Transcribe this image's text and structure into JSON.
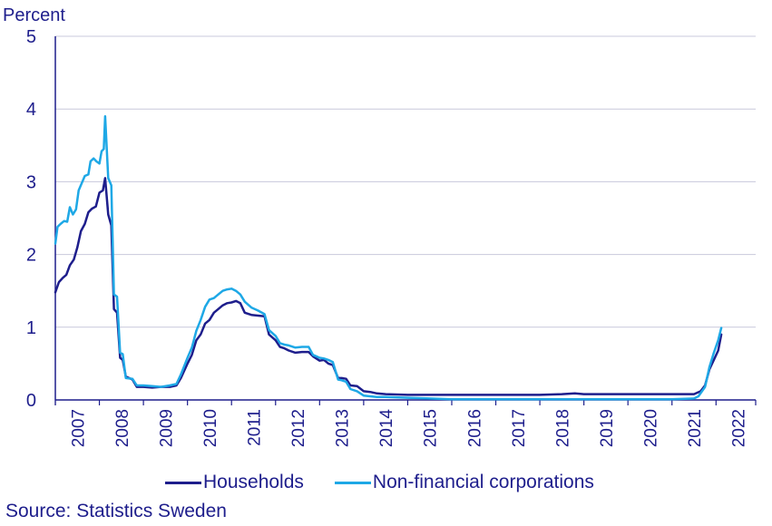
{
  "chart_data": {
    "type": "line",
    "y_unit_label": "Percent",
    "ylim": [
      0,
      5
    ],
    "y_ticks": [
      "0",
      "1",
      "2",
      "3",
      "4",
      "5"
    ],
    "x_ticks": [
      "2007",
      "2008",
      "2009",
      "2010",
      "2011",
      "2012",
      "2013",
      "2014",
      "2015",
      "2016",
      "2017",
      "2018",
      "2019",
      "2020",
      "2021",
      "2022"
    ],
    "xlim": [
      2007.0,
      2022.9
    ],
    "grid": true,
    "legend_position": "bottom",
    "series": [
      {
        "name": "Households",
        "color": "#1e1e8c",
        "points": [
          [
            2007.0,
            1.48
          ],
          [
            2007.08,
            1.62
          ],
          [
            2007.17,
            1.68
          ],
          [
            2007.25,
            1.72
          ],
          [
            2007.33,
            1.85
          ],
          [
            2007.42,
            1.93
          ],
          [
            2007.5,
            2.1
          ],
          [
            2007.58,
            2.32
          ],
          [
            2007.67,
            2.42
          ],
          [
            2007.75,
            2.58
          ],
          [
            2007.83,
            2.63
          ],
          [
            2007.92,
            2.66
          ],
          [
            2008.0,
            2.85
          ],
          [
            2008.08,
            2.88
          ],
          [
            2008.13,
            3.05
          ],
          [
            2008.2,
            2.55
          ],
          [
            2008.27,
            2.4
          ],
          [
            2008.33,
            1.25
          ],
          [
            2008.4,
            1.2
          ],
          [
            2008.47,
            0.58
          ],
          [
            2008.53,
            0.55
          ],
          [
            2008.6,
            0.32
          ],
          [
            2008.75,
            0.28
          ],
          [
            2008.85,
            0.18
          ],
          [
            2009.0,
            0.18
          ],
          [
            2009.2,
            0.17
          ],
          [
            2009.4,
            0.18
          ],
          [
            2009.6,
            0.18
          ],
          [
            2009.75,
            0.2
          ],
          [
            2009.85,
            0.3
          ],
          [
            2010.0,
            0.5
          ],
          [
            2010.1,
            0.62
          ],
          [
            2010.2,
            0.82
          ],
          [
            2010.3,
            0.9
          ],
          [
            2010.4,
            1.05
          ],
          [
            2010.5,
            1.1
          ],
          [
            2010.6,
            1.2
          ],
          [
            2010.7,
            1.25
          ],
          [
            2010.8,
            1.3
          ],
          [
            2010.9,
            1.33
          ],
          [
            2011.0,
            1.34
          ],
          [
            2011.1,
            1.36
          ],
          [
            2011.2,
            1.33
          ],
          [
            2011.3,
            1.2
          ],
          [
            2011.45,
            1.17
          ],
          [
            2011.6,
            1.16
          ],
          [
            2011.75,
            1.15
          ],
          [
            2011.85,
            0.9
          ],
          [
            2012.0,
            0.82
          ],
          [
            2012.1,
            0.73
          ],
          [
            2012.2,
            0.71
          ],
          [
            2012.3,
            0.68
          ],
          [
            2012.45,
            0.65
          ],
          [
            2012.6,
            0.66
          ],
          [
            2012.75,
            0.66
          ],
          [
            2012.85,
            0.6
          ],
          [
            2013.0,
            0.54
          ],
          [
            2013.1,
            0.55
          ],
          [
            2013.2,
            0.5
          ],
          [
            2013.3,
            0.48
          ],
          [
            2013.42,
            0.3
          ],
          [
            2013.5,
            0.3
          ],
          [
            2013.6,
            0.29
          ],
          [
            2013.7,
            0.2
          ],
          [
            2013.85,
            0.19
          ],
          [
            2014.0,
            0.12
          ],
          [
            2014.15,
            0.11
          ],
          [
            2014.3,
            0.09
          ],
          [
            2014.5,
            0.08
          ],
          [
            2015.0,
            0.07
          ],
          [
            2016.0,
            0.07
          ],
          [
            2017.0,
            0.07
          ],
          [
            2017.7,
            0.07
          ],
          [
            2018.0,
            0.07
          ],
          [
            2018.5,
            0.08
          ],
          [
            2018.8,
            0.09
          ],
          [
            2019.0,
            0.08
          ],
          [
            2019.5,
            0.08
          ],
          [
            2020.0,
            0.08
          ],
          [
            2020.5,
            0.08
          ],
          [
            2021.0,
            0.08
          ],
          [
            2021.3,
            0.08
          ],
          [
            2021.5,
            0.08
          ],
          [
            2021.65,
            0.12
          ],
          [
            2021.75,
            0.2
          ],
          [
            2021.85,
            0.42
          ],
          [
            2021.95,
            0.55
          ],
          [
            2022.05,
            0.68
          ],
          [
            2022.12,
            0.9
          ]
        ]
      },
      {
        "name": "Non-financial corporations",
        "color": "#1ea8e6",
        "points": [
          [
            2007.0,
            2.15
          ],
          [
            2007.05,
            2.38
          ],
          [
            2007.12,
            2.42
          ],
          [
            2007.2,
            2.46
          ],
          [
            2007.27,
            2.45
          ],
          [
            2007.33,
            2.65
          ],
          [
            2007.4,
            2.55
          ],
          [
            2007.47,
            2.62
          ],
          [
            2007.53,
            2.88
          ],
          [
            2007.6,
            2.98
          ],
          [
            2007.67,
            3.08
          ],
          [
            2007.75,
            3.1
          ],
          [
            2007.8,
            3.28
          ],
          [
            2007.87,
            3.32
          ],
          [
            2007.93,
            3.28
          ],
          [
            2008.0,
            3.25
          ],
          [
            2008.05,
            3.42
          ],
          [
            2008.1,
            3.45
          ],
          [
            2008.13,
            3.9
          ],
          [
            2008.2,
            3.05
          ],
          [
            2008.27,
            2.95
          ],
          [
            2008.33,
            1.45
          ],
          [
            2008.4,
            1.42
          ],
          [
            2008.47,
            0.65
          ],
          [
            2008.53,
            0.63
          ],
          [
            2008.6,
            0.3
          ],
          [
            2008.75,
            0.29
          ],
          [
            2008.85,
            0.2
          ],
          [
            2009.0,
            0.2
          ],
          [
            2009.2,
            0.19
          ],
          [
            2009.4,
            0.18
          ],
          [
            2009.6,
            0.2
          ],
          [
            2009.75,
            0.22
          ],
          [
            2009.85,
            0.35
          ],
          [
            2010.0,
            0.58
          ],
          [
            2010.1,
            0.72
          ],
          [
            2010.2,
            0.95
          ],
          [
            2010.3,
            1.1
          ],
          [
            2010.4,
            1.28
          ],
          [
            2010.5,
            1.38
          ],
          [
            2010.6,
            1.4
          ],
          [
            2010.7,
            1.45
          ],
          [
            2010.8,
            1.5
          ],
          [
            2010.9,
            1.52
          ],
          [
            2011.0,
            1.53
          ],
          [
            2011.1,
            1.5
          ],
          [
            2011.2,
            1.45
          ],
          [
            2011.3,
            1.35
          ],
          [
            2011.45,
            1.27
          ],
          [
            2011.6,
            1.23
          ],
          [
            2011.75,
            1.18
          ],
          [
            2011.85,
            0.96
          ],
          [
            2012.0,
            0.88
          ],
          [
            2012.1,
            0.78
          ],
          [
            2012.2,
            0.76
          ],
          [
            2012.3,
            0.75
          ],
          [
            2012.45,
            0.72
          ],
          [
            2012.6,
            0.73
          ],
          [
            2012.75,
            0.73
          ],
          [
            2012.85,
            0.62
          ],
          [
            2013.0,
            0.58
          ],
          [
            2013.1,
            0.57
          ],
          [
            2013.2,
            0.55
          ],
          [
            2013.3,
            0.52
          ],
          [
            2013.42,
            0.28
          ],
          [
            2013.5,
            0.27
          ],
          [
            2013.6,
            0.25
          ],
          [
            2013.7,
            0.15
          ],
          [
            2013.85,
            0.12
          ],
          [
            2014.0,
            0.06
          ],
          [
            2014.15,
            0.05
          ],
          [
            2014.3,
            0.04
          ],
          [
            2014.5,
            0.04
          ],
          [
            2015.0,
            0.03
          ],
          [
            2015.5,
            0.02
          ],
          [
            2016.0,
            0.01
          ],
          [
            2017.0,
            0.01
          ],
          [
            2018.0,
            0.01
          ],
          [
            2019.0,
            0.01
          ],
          [
            2020.0,
            0.01
          ],
          [
            2021.0,
            0.01
          ],
          [
            2021.5,
            0.02
          ],
          [
            2021.6,
            0.05
          ],
          [
            2021.75,
            0.18
          ],
          [
            2021.85,
            0.45
          ],
          [
            2021.95,
            0.65
          ],
          [
            2022.05,
            0.82
          ],
          [
            2022.12,
            0.99
          ]
        ]
      }
    ]
  },
  "source_text": "Source: Statistics Sweden"
}
